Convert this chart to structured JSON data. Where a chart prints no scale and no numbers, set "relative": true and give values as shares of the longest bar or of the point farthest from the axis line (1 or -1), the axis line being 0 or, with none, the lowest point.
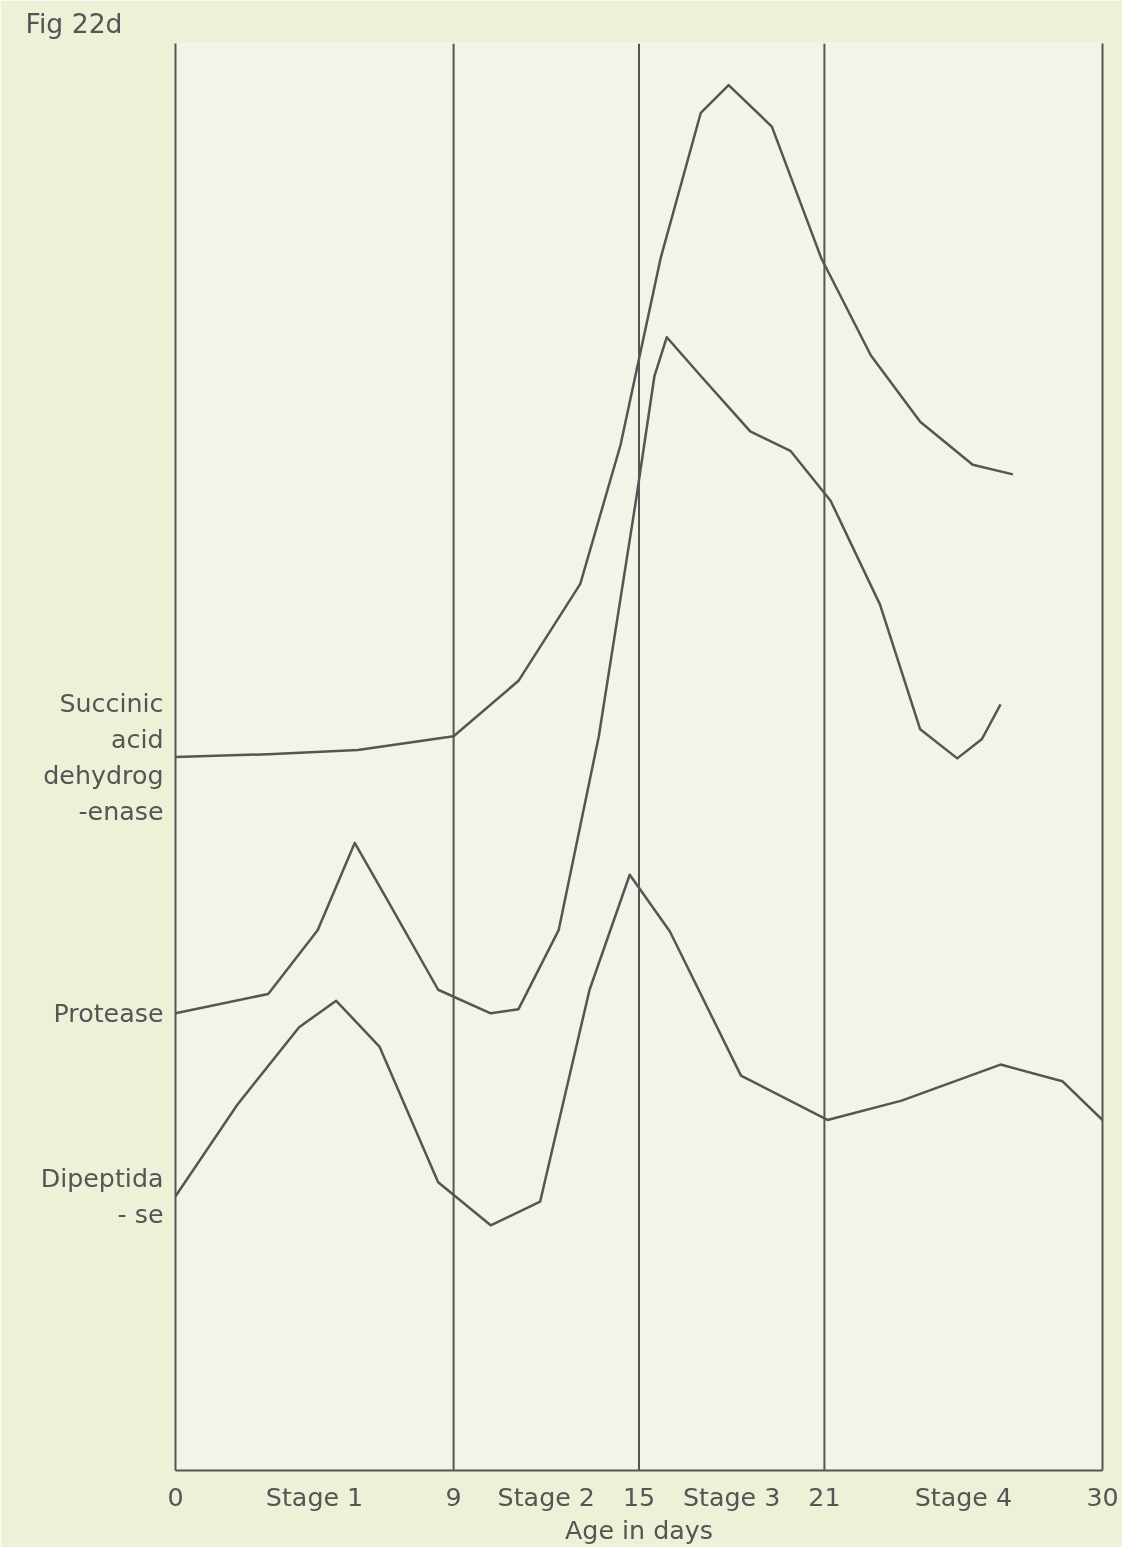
{
  "chart_data": {
    "type": "line",
    "title": "Fig 22d",
    "xlabel": "Age in days",
    "relative": true,
    "xlim": [
      0,
      30
    ],
    "xticks": [
      0,
      {
        "value": 4.5,
        "label": "Stage 1"
      },
      9,
      {
        "value": 12,
        "label": "Stage 2"
      },
      15,
      {
        "value": 18,
        "label": "Stage 3"
      },
      21,
      {
        "value": 25.5,
        "label": "Stage 4"
      },
      30
    ],
    "ref_lines": [
      {
        "axis": "x",
        "value": 9,
        "color": "#555555"
      },
      {
        "axis": "x",
        "value": 15,
        "color": "#555555"
      },
      {
        "axis": "x",
        "value": 21,
        "color": "#555555"
      }
    ],
    "tick_labels": "x",
    "grid": false,
    "marker": "none",
    "line_style": "solid",
    "series": [
      {
        "name": "Succinic\nacid\ndehydrog\n-enase",
        "color": "#555555",
        "x": [
          0,
          3,
          5.9,
          9,
          11.1,
          13.1,
          14.4,
          15.7,
          17,
          17.9,
          19.3,
          20.9,
          22.5,
          24.1,
          25.8,
          27.1
        ],
        "values": [
          0.515,
          0.517,
          0.52,
          0.53,
          0.57,
          0.64,
          0.74,
          0.875,
          0.98,
          1.0,
          0.97,
          0.875,
          0.805,
          0.757,
          0.726,
          0.719
        ]
      },
      {
        "name": "Protease",
        "color": "#555555",
        "x": [
          0,
          3,
          4.6,
          5.8,
          6.9,
          8.5,
          10.2,
          11.1,
          12.4,
          13.7,
          14.9,
          15.5,
          15.9,
          17,
          18.6,
          19.9,
          21.2,
          22.8,
          24.1,
          25.3,
          26.1,
          26.7
        ],
        "values": [
          0.33,
          0.344,
          0.39,
          0.453,
          0.41,
          0.347,
          0.33,
          0.333,
          0.39,
          0.53,
          0.7,
          0.79,
          0.818,
          0.79,
          0.75,
          0.736,
          0.7,
          0.625,
          0.535,
          0.514,
          0.528,
          0.553
        ]
      },
      {
        "name": "Dipeptida\n- se",
        "color": "#555555",
        "x": [
          0,
          2,
          4,
          5.2,
          6.6,
          8.5,
          10.2,
          11.8,
          13.4,
          14.7,
          16,
          18.3,
          21.1,
          23.5,
          26.7,
          28.7,
          30
        ],
        "values": [
          0.198,
          0.264,
          0.32,
          0.339,
          0.306,
          0.208,
          0.177,
          0.194,
          0.347,
          0.43,
          0.389,
          0.285,
          0.253,
          0.267,
          0.293,
          0.281,
          0.253
        ]
      }
    ]
  }
}
